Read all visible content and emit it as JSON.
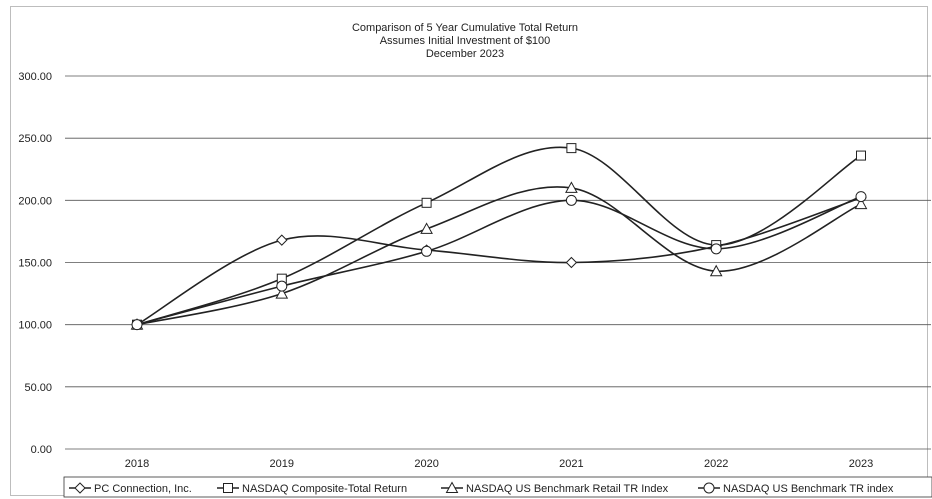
{
  "chart_data": {
    "type": "line",
    "title": [
      "Comparison of 5 Year Cumulative Total Return",
      "Assumes Initial Investment of $100",
      "December 2023"
    ],
    "xlabel": "",
    "ylabel": "",
    "categories": [
      "2018",
      "2019",
      "2020",
      "2021",
      "2022",
      "2023"
    ],
    "ylim": [
      0,
      300
    ],
    "yticks": [
      "0.00",
      "50.00",
      "100.00",
      "150.00",
      "200.00",
      "250.00",
      "300.00"
    ],
    "grid": "horizontal",
    "legend_position": "bottom",
    "series": [
      {
        "name": "PC Connection, Inc.",
        "marker": "diamond",
        "values": [
          100,
          168,
          160,
          150,
          163,
          202
        ]
      },
      {
        "name": "NASDAQ Composite-Total Return",
        "marker": "square",
        "values": [
          100,
          137,
          198,
          242,
          164,
          236
        ]
      },
      {
        "name": "NASDAQ US Benchmark Retail TR Index",
        "marker": "triangle",
        "values": [
          100,
          125,
          177,
          210,
          143,
          197
        ]
      },
      {
        "name": "NASDAQ US Benchmark TR index",
        "marker": "circle",
        "values": [
          100,
          131,
          159,
          200,
          161,
          203
        ]
      }
    ],
    "colors": {
      "line": "#222222",
      "grid": "#555555",
      "marker_fill": "#ffffff"
    }
  }
}
